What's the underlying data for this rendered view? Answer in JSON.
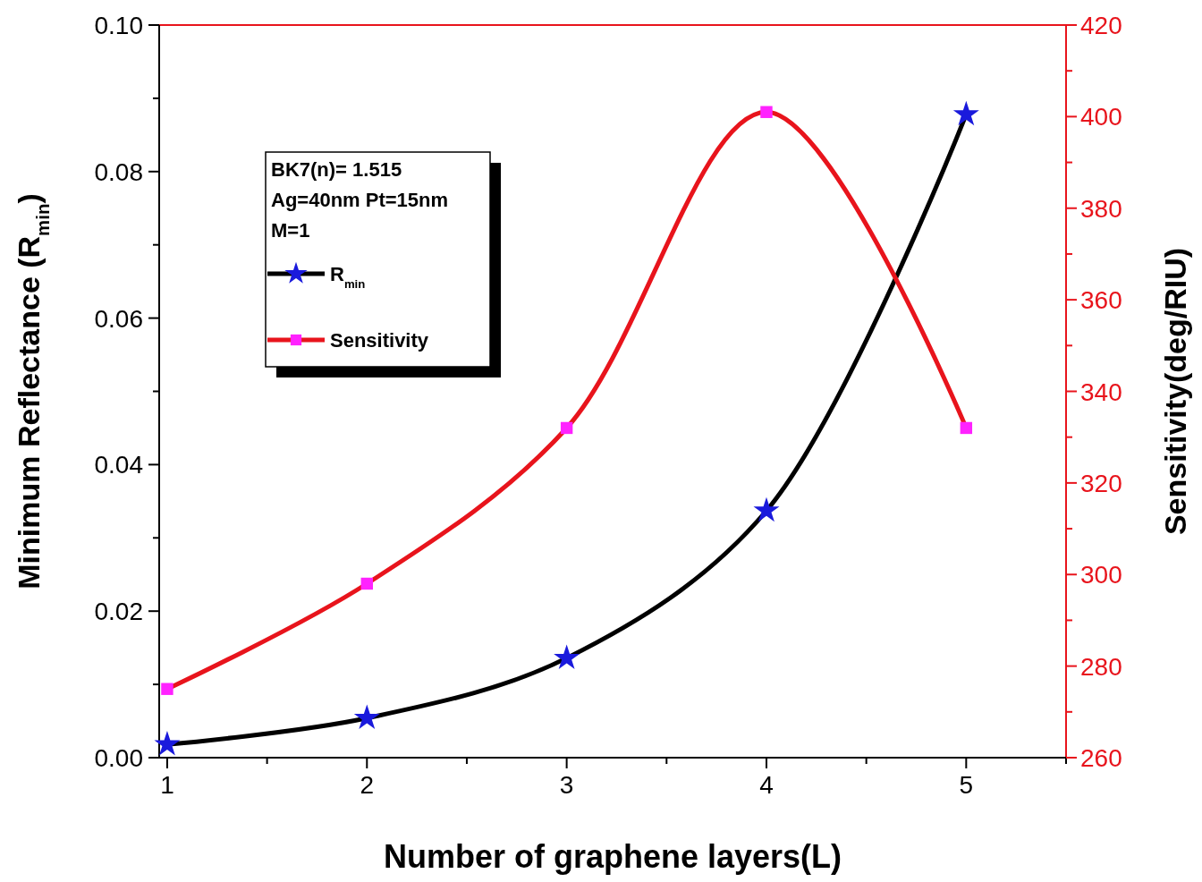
{
  "chart_data": {
    "type": "line",
    "xlabel": "Number of graphene layers(L)",
    "ylabel": "Minimum Reflectance (R$_{min}$)",
    "y2label": "Sensitivity(deg/RIU)",
    "x": [
      1,
      2,
      3,
      4,
      5
    ],
    "series": [
      {
        "name": "R$_{min}$",
        "color": "#000000",
        "colors": [
          "#1a1adc",
          "#1a1adc",
          "#1a1adc",
          "#1a1adc",
          "#1a1adc"
        ],
        "marker": "star",
        "values": [
          0.0018,
          0.0054,
          0.0136,
          0.0337,
          0.0878
        ]
      },
      {
        "name": "Sensitivity",
        "axis": "y2",
        "color": "#e8141c",
        "colors": [
          "#ff22ff",
          "#ff22ff",
          "#ff22ff",
          "#ff22ff",
          "#ff22ff"
        ],
        "marker": "square",
        "values": [
          275,
          298,
          332,
          401,
          332
        ]
      }
    ],
    "annotations": [
      "BK7(n)= 1.515",
      "Ag=40nm Pt=15nm",
      "M=1"
    ],
    "legend": "top left",
    "xlim": [
      0.96,
      5.5
    ],
    "xticks": [
      1,
      {
        "value": 1.5,
        "label": null
      },
      2,
      {
        "value": 2.5,
        "label": null
      },
      3,
      {
        "value": 3.5,
        "label": null
      },
      4,
      {
        "value": 4.5,
        "label": null
      },
      5,
      {
        "value": 5.5,
        "label": null
      }
    ],
    "ylim": [
      0,
      0.1
    ],
    "yticks": [
      {
        "value": 0,
        "label": "0.00"
      },
      {
        "value": 0.01,
        "label": null
      },
      {
        "value": 0.02,
        "label": "0.02"
      },
      {
        "value": 0.03,
        "label": null
      },
      {
        "value": 0.04,
        "label": "0.04"
      },
      {
        "value": 0.05,
        "label": null
      },
      {
        "value": 0.06,
        "label": "0.06"
      },
      {
        "value": 0.07,
        "label": null
      },
      {
        "value": 0.08,
        "label": "0.08"
      },
      {
        "value": 0.09,
        "label": null
      },
      {
        "value": 0.1,
        "label": "0.10"
      }
    ],
    "y2lim": [
      260,
      420
    ],
    "y2ticks": [
      260,
      {
        "value": 270,
        "label": null
      },
      280,
      {
        "value": 290,
        "label": null
      },
      300,
      {
        "value": 310,
        "label": null
      },
      320,
      {
        "value": 330,
        "label": null
      },
      340,
      {
        "value": 350,
        "label": null
      },
      360,
      {
        "value": 370,
        "label": null
      },
      380,
      {
        "value": 390,
        "label": null
      },
      400,
      {
        "value": 410,
        "label": null
      },
      420
    ]
  }
}
